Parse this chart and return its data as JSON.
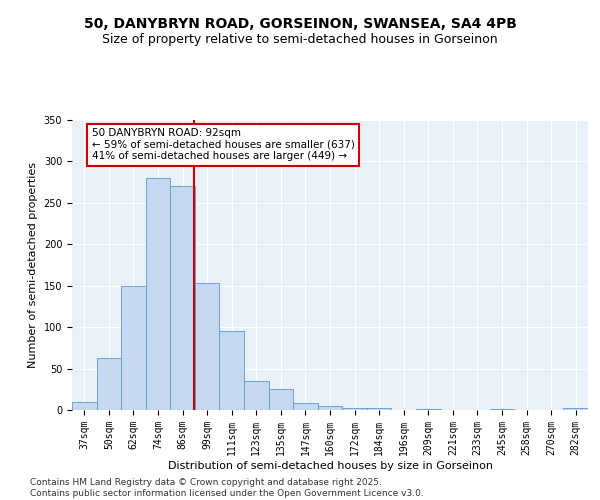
{
  "title1": "50, DANYBRYN ROAD, GORSEINON, SWANSEA, SA4 4PB",
  "title2": "Size of property relative to semi-detached houses in Gorseinon",
  "xlabel": "Distribution of semi-detached houses by size in Gorseinon",
  "ylabel": "Number of semi-detached properties",
  "categories": [
    "37sqm",
    "50sqm",
    "62sqm",
    "74sqm",
    "86sqm",
    "99sqm",
    "111sqm",
    "123sqm",
    "135sqm",
    "147sqm",
    "160sqm",
    "172sqm",
    "184sqm",
    "196sqm",
    "209sqm",
    "221sqm",
    "233sqm",
    "245sqm",
    "258sqm",
    "270sqm",
    "282sqm"
  ],
  "values": [
    10,
    63,
    150,
    280,
    270,
    153,
    95,
    35,
    25,
    9,
    5,
    3,
    2,
    0,
    1,
    0,
    0,
    1,
    0,
    0,
    2
  ],
  "bar_color": "#c5d8f0",
  "bar_edge_color": "#5b9bd5",
  "vline_color": "#cc0000",
  "annotation_box_text": "50 DANYBRYN ROAD: 92sqm\n← 59% of semi-detached houses are smaller (637)\n41% of semi-detached houses are larger (449) →",
  "annotation_box_color": "#cc0000",
  "ylim": [
    0,
    350
  ],
  "yticks": [
    0,
    50,
    100,
    150,
    200,
    250,
    300,
    350
  ],
  "footer1": "Contains HM Land Registry data © Crown copyright and database right 2025.",
  "footer2": "Contains public sector information licensed under the Open Government Licence v3.0.",
  "bg_color": "#e8f0f8",
  "fig_bg_color": "#ffffff",
  "title_fontsize": 10,
  "subtitle_fontsize": 9,
  "tick_fontsize": 7,
  "label_fontsize": 8,
  "footer_fontsize": 6.5
}
